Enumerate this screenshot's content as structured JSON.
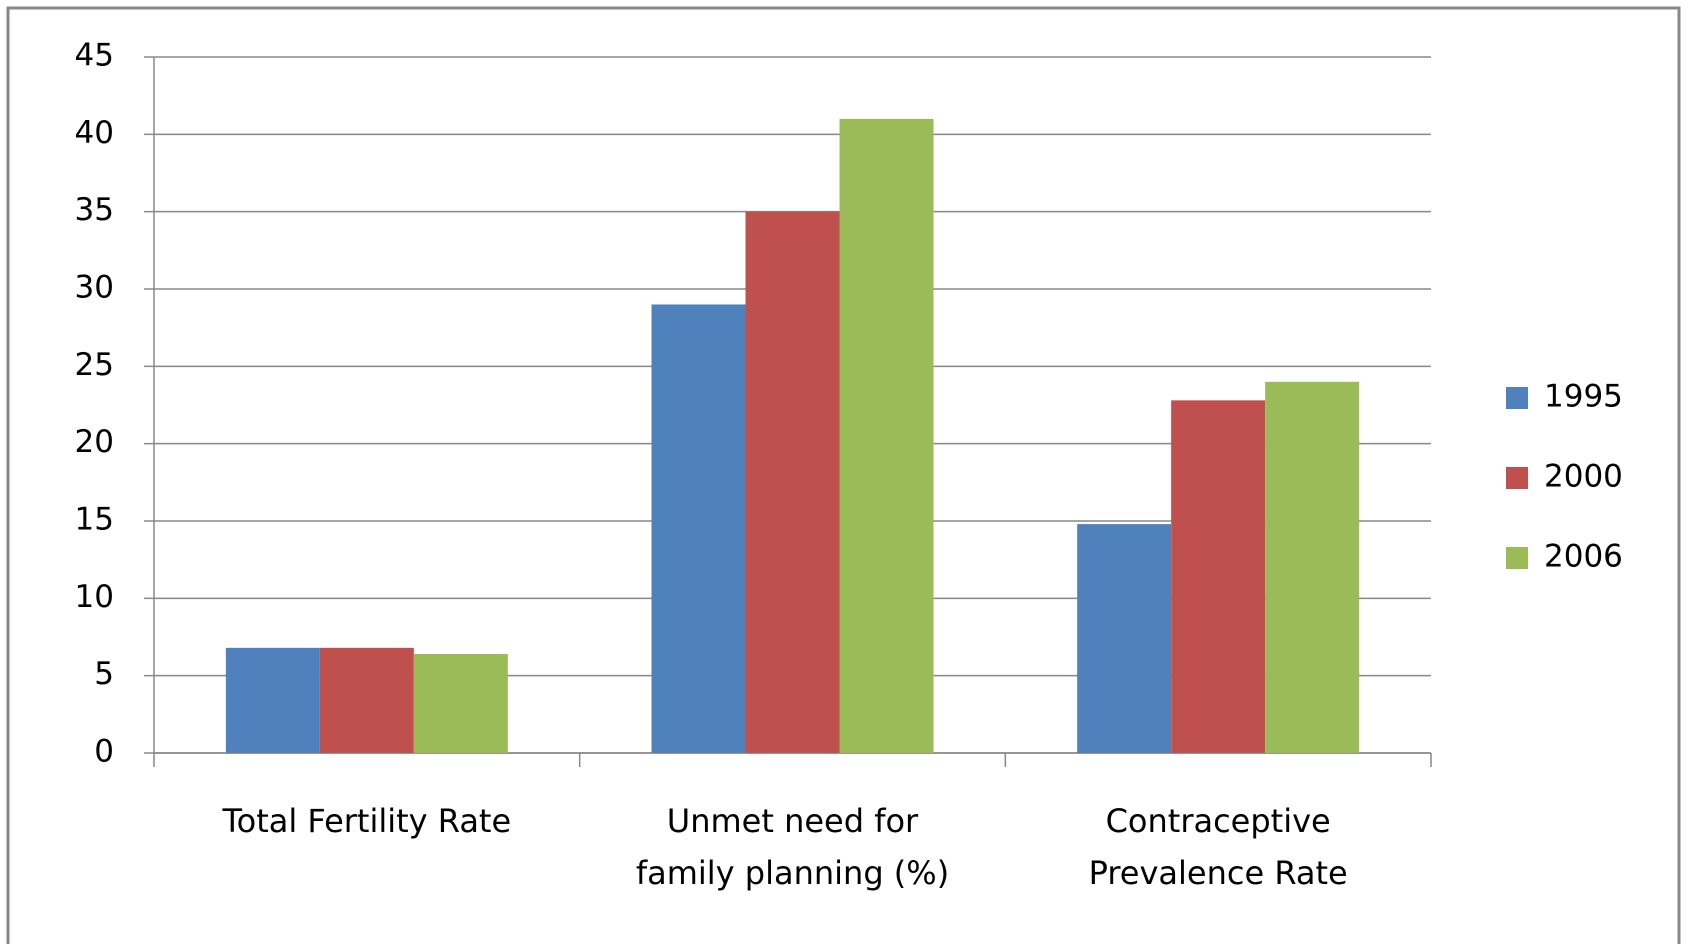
{
  "chart_data": {
    "type": "bar",
    "categories": [
      "Total Fertility Rate",
      "Unmet need for family planning (%)",
      "Contraceptive Prevalence Rate"
    ],
    "series": [
      {
        "name": "1995",
        "color": "#4f81bd",
        "values": [
          6.8,
          29,
          14.8
        ]
      },
      {
        "name": "2000",
        "color": "#c0504d",
        "values": [
          6.8,
          35,
          22.8
        ]
      },
      {
        "name": "2006",
        "color": "#9bbb59",
        "values": [
          6.4,
          41,
          24
        ]
      }
    ],
    "ylim": [
      0,
      45
    ],
    "yticks": [
      0,
      5,
      10,
      15,
      20,
      25,
      30,
      35,
      40,
      45
    ],
    "grid": true,
    "legend": "right"
  }
}
